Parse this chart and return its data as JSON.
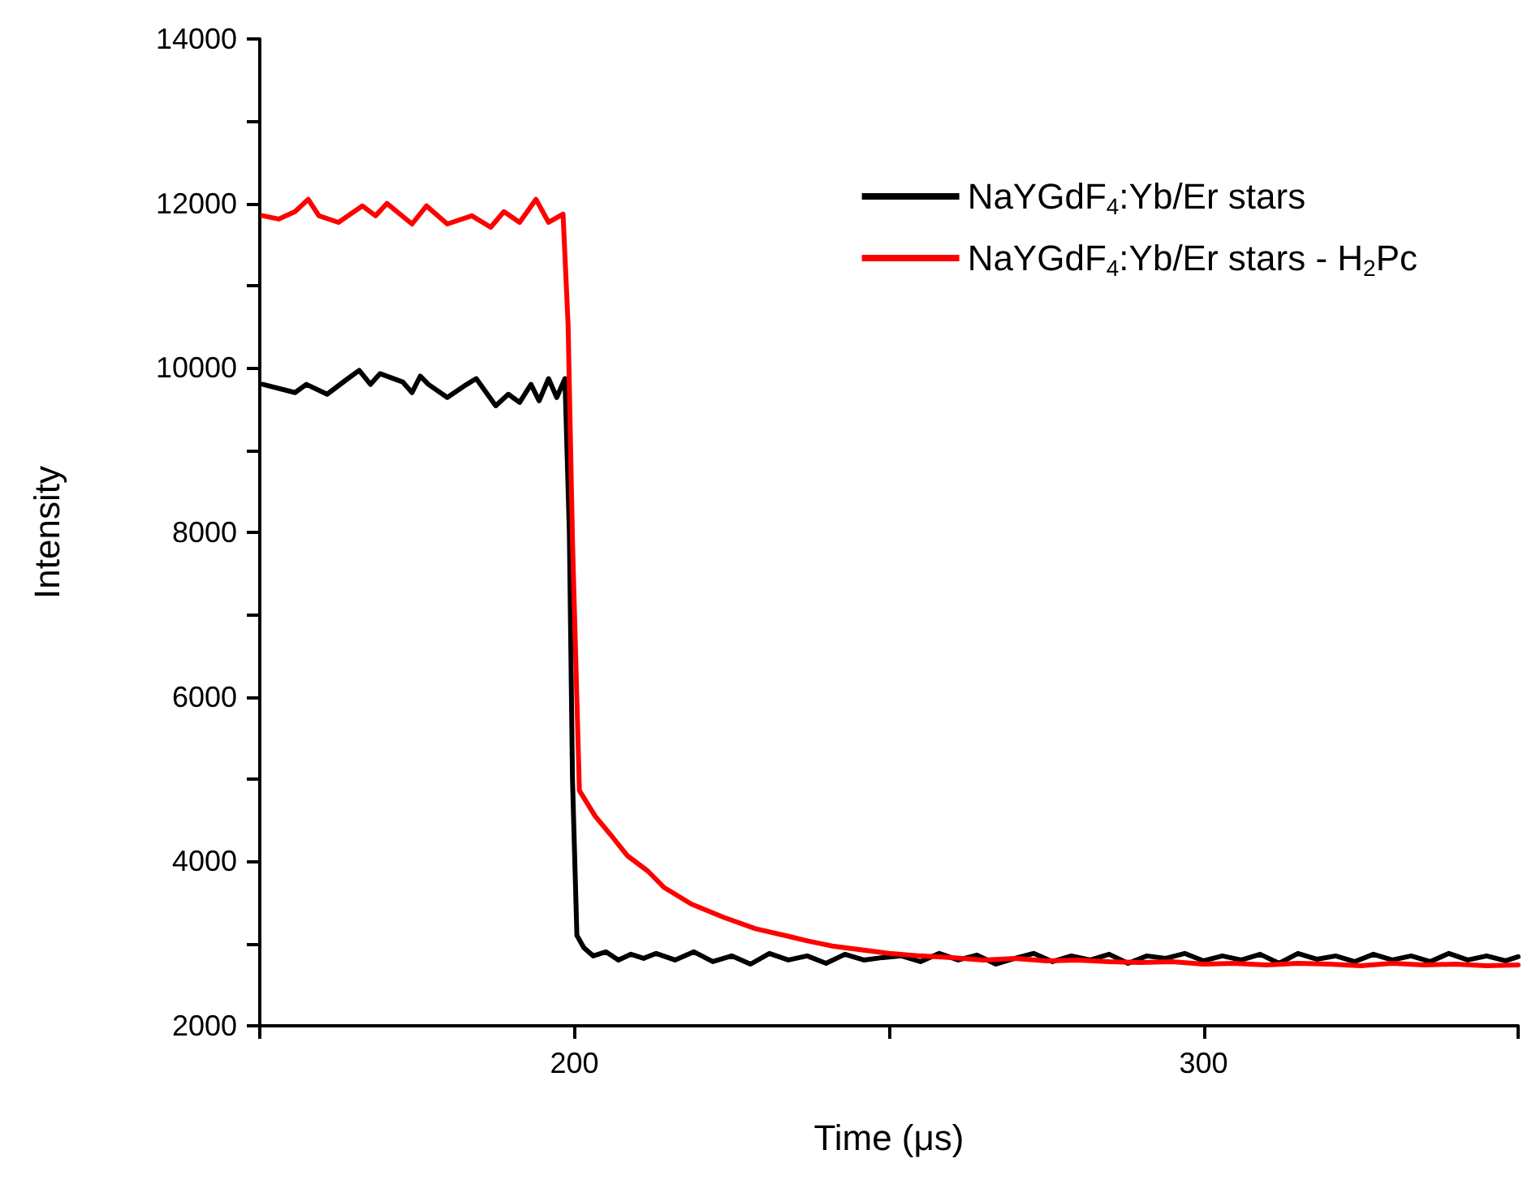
{
  "chart_data": {
    "type": "line",
    "xlabel": "Time (μs)",
    "ylabel": "Intensity",
    "xlim": [
      150,
      350
    ],
    "xticks": [
      {
        "value": 150,
        "label": null
      },
      200,
      {
        "value": 250,
        "label": null
      },
      300,
      {
        "value": 350,
        "label": null
      }
    ],
    "ylim": [
      2000,
      14000
    ],
    "yticks": [
      2000,
      {
        "value": 3000,
        "label": null
      },
      4000,
      {
        "value": 5000,
        "label": null
      },
      6000,
      {
        "value": 7000,
        "label": null
      },
      8000,
      {
        "value": 9000,
        "label": null
      },
      10000,
      {
        "value": 11000,
        "label": null
      },
      12000,
      {
        "value": 13000,
        "label": null
      },
      14000
    ],
    "grid": false,
    "legend": "top right",
    "marker": "none",
    "line_style": "solid",
    "series": [
      {
        "name": "NaYGdF$_{4}$:Yb/Er stars",
        "color": "#000000",
        "x": [
          150.5,
          155.6,
          157.4,
          160.7,
          164,
          165.8,
          167.6,
          169.1,
          172.7,
          174.2,
          175.5,
          176.8,
          179.8,
          182.9,
          184.4,
          187.5,
          189.5,
          191.3,
          193.1,
          194.4,
          195.9,
          197.2,
          198.5,
          199.2,
          199.7,
          200.4,
          201.5,
          203,
          205,
          207,
          209,
          211,
          213,
          216,
          219,
          222,
          225,
          228,
          231,
          234,
          237,
          240,
          243,
          246,
          249,
          252,
          255,
          258,
          261,
          264,
          267,
          270,
          273,
          276,
          279,
          282,
          285,
          288,
          291,
          294,
          297,
          300,
          303,
          306,
          309,
          312,
          315,
          318,
          321,
          324,
          327,
          330,
          333,
          336,
          339,
          342,
          345,
          348,
          350
        ],
        "values": [
          9800,
          9700,
          9800,
          9680,
          9870,
          9970,
          9800,
          9930,
          9830,
          9700,
          9900,
          9800,
          9640,
          9800,
          9870,
          9540,
          9680,
          9580,
          9800,
          9600,
          9870,
          9640,
          9870,
          8000,
          5000,
          3100,
          2950,
          2850,
          2900,
          2800,
          2870,
          2820,
          2880,
          2800,
          2900,
          2780,
          2850,
          2750,
          2880,
          2800,
          2850,
          2760,
          2870,
          2800,
          2830,
          2850,
          2780,
          2880,
          2800,
          2860,
          2750,
          2820,
          2880,
          2780,
          2850,
          2800,
          2870,
          2760,
          2850,
          2820,
          2880,
          2790,
          2850,
          2800,
          2870,
          2760,
          2880,
          2810,
          2850,
          2780,
          2870,
          2800,
          2850,
          2780,
          2880,
          2800,
          2850,
          2790,
          2840
        ]
      },
      {
        "name": "NaYGdF$_{4}$:Yb/Er stars - H$_{2}$Pc",
        "color": "#ff0000",
        "x": [
          150.5,
          153,
          155.6,
          157.7,
          159.4,
          162.5,
          166.3,
          168.4,
          170.2,
          174.2,
          176.5,
          179.8,
          183.7,
          186.7,
          188.8,
          191.3,
          193.9,
          195.9,
          198.2,
          199,
          199.7,
          200.8,
          203.3,
          205.9,
          208.4,
          211.7,
          214.3,
          218.6,
          223.7,
          228.8,
          233.9,
          237.2,
          241,
          245,
          250,
          255,
          260,
          265,
          270,
          275,
          280,
          285,
          290,
          295,
          300,
          305,
          310,
          315,
          320,
          325,
          330,
          335,
          340,
          345,
          350
        ],
        "values": [
          11850,
          11810,
          11900,
          12050,
          11850,
          11770,
          11970,
          11850,
          12000,
          11750,
          11970,
          11750,
          11850,
          11710,
          11900,
          11770,
          12050,
          11770,
          11870,
          10530,
          7900,
          4860,
          4550,
          4310,
          4070,
          3880,
          3680,
          3480,
          3320,
          3180,
          3090,
          3030,
          2970,
          2930,
          2880,
          2850,
          2830,
          2800,
          2820,
          2790,
          2800,
          2780,
          2770,
          2780,
          2750,
          2760,
          2740,
          2760,
          2750,
          2730,
          2760,
          2740,
          2750,
          2730,
          2740
        ]
      }
    ]
  }
}
